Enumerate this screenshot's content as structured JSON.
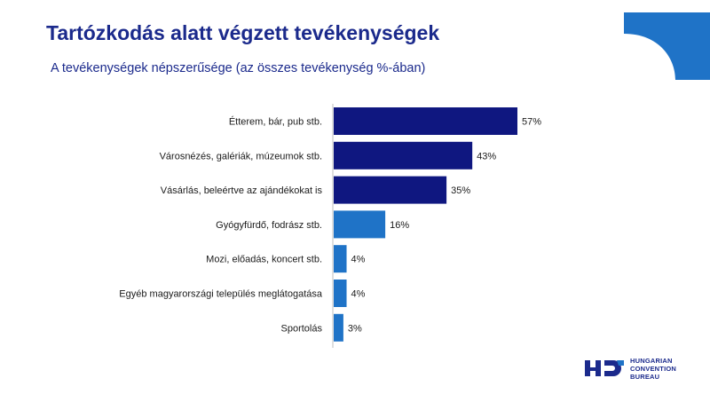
{
  "header": {
    "title": "Tartózkodás alatt végzett tevékenységek",
    "subtitle": "A tevékenységek népszerűsége (az összes tevékenység %-ában)"
  },
  "colors": {
    "dark_bar": "#0f1780",
    "light_bar": "#1f73c7",
    "title": "#1b2a8c",
    "corner_accent": "#1f73c7"
  },
  "chart_data": {
    "type": "bar",
    "orientation": "horizontal",
    "categories": [
      "Étterem, bár, pub stb.",
      "Városnézés, galériák, múzeumok stb.",
      "Vásárlás, beleértve az ajándékokat is",
      "Gyógyfürdő, fodrász stb.",
      "Mozi, előadás, koncert stb.",
      "Egyéb magyarországi település meglátogatása",
      "Sportolás"
    ],
    "values": [
      57,
      43,
      35,
      16,
      4,
      4,
      3
    ],
    "value_labels": [
      "57%",
      "43%",
      "35%",
      "16%",
      "4%",
      "4%",
      "3%"
    ],
    "bar_colors": [
      "#0f1780",
      "#0f1780",
      "#0f1780",
      "#1f73c7",
      "#1f73c7",
      "#1f73c7",
      "#1f73c7"
    ],
    "unit": "%",
    "xlim": [
      0,
      57
    ],
    "grid": false,
    "legend": "none"
  },
  "logo": {
    "line1": "HUNGARIAN",
    "line2": "CONVENTION",
    "line3": "BUREAU"
  }
}
